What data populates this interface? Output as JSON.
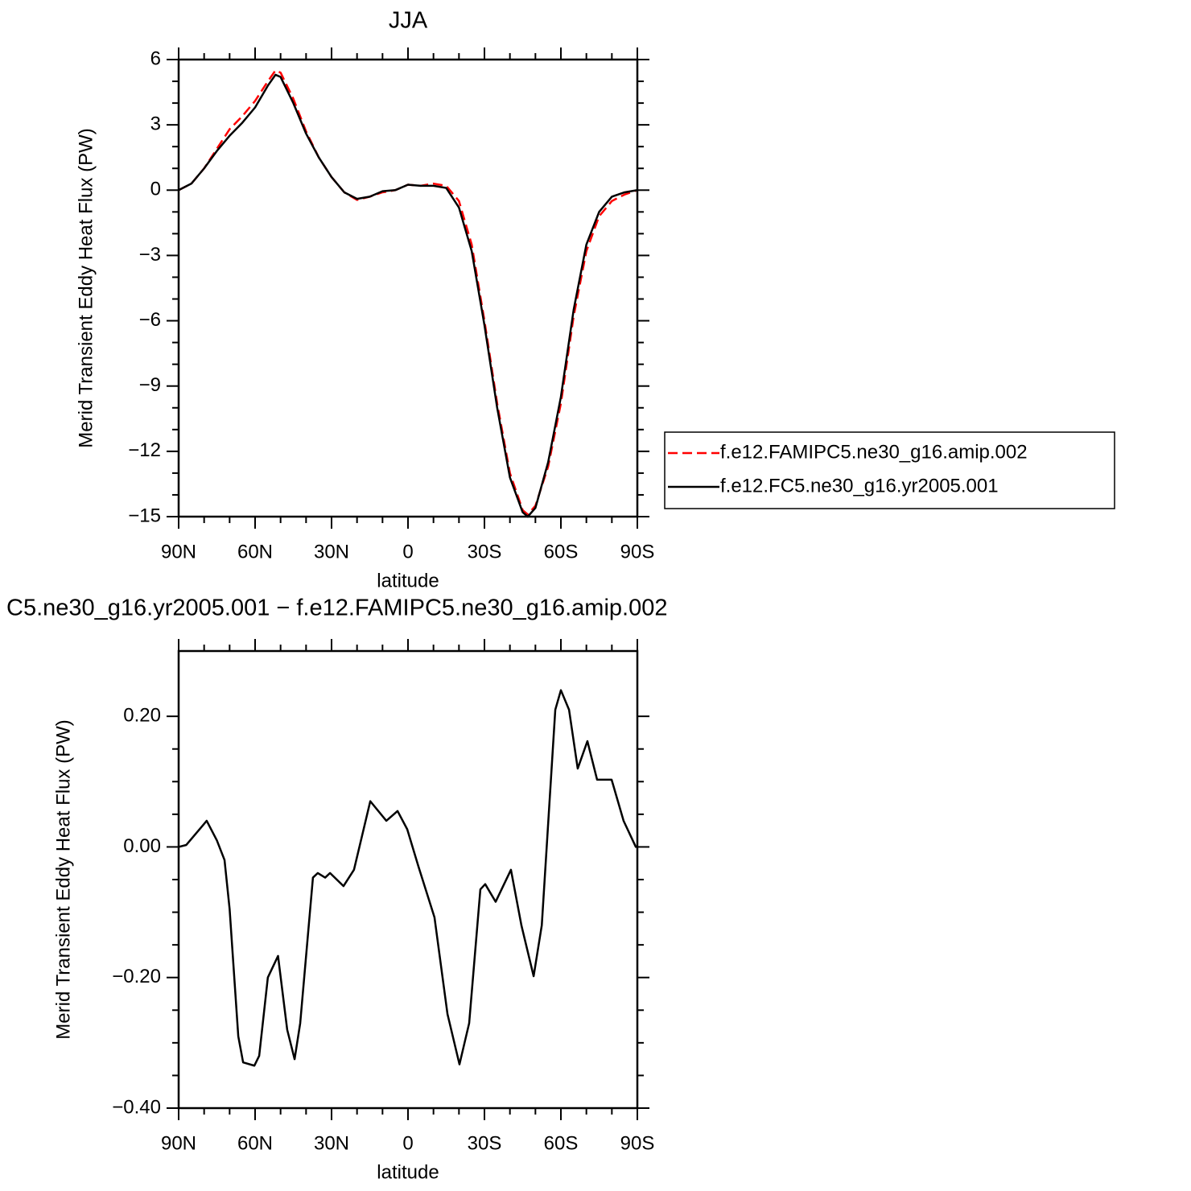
{
  "chart_data": [
    {
      "type": "line",
      "title": "JJA",
      "xlabel": "latitude",
      "ylabel": "Merid Transient Eddy Heat Flux (PW)",
      "x": [
        90,
        85,
        80,
        75,
        70,
        65,
        60,
        55,
        52,
        50,
        45,
        40,
        35,
        30,
        25,
        20,
        15,
        10,
        5,
        0,
        -5,
        -10,
        -15,
        -20,
        -25,
        -30,
        -35,
        -40,
        -45,
        -47,
        -50,
        -55,
        -60,
        -65,
        -70,
        -75,
        -80,
        -85,
        -90
      ],
      "series": [
        {
          "name": "f.e12.FAMIPC5.ne30_g16.amip.002",
          "color": "#ff0000",
          "line_style": "dashed",
          "values": [
            0,
            0.3,
            1.0,
            1.9,
            2.8,
            3.4,
            4.1,
            5.0,
            5.5,
            5.4,
            4.2,
            2.7,
            1.5,
            0.6,
            -0.1,
            -0.45,
            -0.3,
            -0.1,
            0.0,
            0.25,
            0.2,
            0.3,
            0.2,
            -0.5,
            -2.5,
            -6.0,
            -9.8,
            -13.0,
            -14.7,
            -14.9,
            -14.5,
            -12.7,
            -9.8,
            -5.8,
            -2.8,
            -1.2,
            -0.5,
            -0.2,
            0
          ]
        },
        {
          "name": "f.e12.FC5.ne30_g16.yr2005.001",
          "color": "#000000",
          "line_style": "solid",
          "values": [
            0,
            0.3,
            1.0,
            1.8,
            2.5,
            3.1,
            3.8,
            4.8,
            5.3,
            5.2,
            4.0,
            2.6,
            1.5,
            0.6,
            -0.1,
            -0.4,
            -0.3,
            -0.05,
            0.0,
            0.25,
            0.2,
            0.2,
            0.1,
            -0.8,
            -2.8,
            -6.2,
            -10.0,
            -13.2,
            -14.8,
            -15.0,
            -14.6,
            -12.5,
            -9.5,
            -5.5,
            -2.5,
            -1.0,
            -0.3,
            -0.1,
            0
          ]
        }
      ],
      "xlim": [
        90,
        -90
      ],
      "xticks": [
        {
          "value": 90,
          "label": "90N"
        },
        {
          "value": 60,
          "label": "60N"
        },
        {
          "value": 30,
          "label": "30N"
        },
        0,
        {
          "value": -30,
          "label": "30S"
        },
        {
          "value": -60,
          "label": "60S"
        },
        {
          "value": -90,
          "label": "90S"
        }
      ],
      "ylim": [
        -15,
        6
      ],
      "yticks": [
        {
          "value": -15,
          "label": "−15"
        },
        {
          "value": -12,
          "label": "−12"
        },
        {
          "value": -9,
          "label": "−9"
        },
        {
          "value": -6,
          "label": "−6"
        },
        {
          "value": -3,
          "label": "−3"
        },
        0,
        3,
        6
      ],
      "legend": "right"
    },
    {
      "type": "line",
      "title": "C5.ne30_g16.yr2005.001 − f.e12.FAMIPC5.ne30_g16.amip.002",
      "xlabel": "latitude",
      "ylabel": "Merid Transient Eddy Heat Flux (PW)",
      "x": [
        90,
        87,
        79,
        75,
        72,
        70,
        66.6,
        64.7,
        60.3,
        58.4,
        55,
        51,
        47.4,
        44.5,
        42.3,
        37.3,
        35.4,
        32.5,
        30.6,
        25.3,
        21.2,
        14.8,
        8.5,
        4.1,
        0.3,
        -4.1,
        -10.4,
        -15.5,
        -20.2,
        -24,
        -28.4,
        -30.3,
        -34.4,
        -40.4,
        -44.5,
        -49.3,
        -52.5,
        -57.8,
        -60,
        -63.2,
        -66.6,
        -70.4,
        -74.2,
        -79.9,
        -84.6,
        -89.4,
        -90
      ],
      "series": [
        {
          "color": "#000000",
          "line_style": "solid",
          "values": [
            0,
            0.003,
            0.04,
            0.01,
            -0.02,
            -0.095,
            -0.29,
            -0.33,
            -0.335,
            -0.32,
            -0.2,
            -0.167,
            -0.28,
            -0.325,
            -0.27,
            -0.047,
            -0.04,
            -0.047,
            -0.04,
            -0.06,
            -0.035,
            0.07,
            0.04,
            0.055,
            0.027,
            -0.03,
            -0.108,
            -0.256,
            -0.333,
            -0.27,
            -0.065,
            -0.057,
            -0.084,
            -0.035,
            -0.12,
            -0.198,
            -0.12,
            0.21,
            0.24,
            0.21,
            0.12,
            0.162,
            0.103,
            0.103,
            0.04,
            0,
            0
          ]
        }
      ],
      "xlim": [
        90,
        -90
      ],
      "xticks": [
        {
          "value": 90,
          "label": "90N"
        },
        {
          "value": 60,
          "label": "60N"
        },
        {
          "value": 30,
          "label": "30N"
        },
        0,
        {
          "value": -30,
          "label": "30S"
        },
        {
          "value": -60,
          "label": "60S"
        },
        {
          "value": -90,
          "label": "90S"
        }
      ],
      "ylim": [
        -0.4,
        0.3
      ],
      "yticks": [
        {
          "value": -0.4,
          "label": "−0.40"
        },
        {
          "value": -0.2,
          "label": "−0.20"
        },
        {
          "value": 0,
          "label": "0.00"
        },
        {
          "value": 0.2,
          "label": "0.20"
        }
      ]
    }
  ]
}
